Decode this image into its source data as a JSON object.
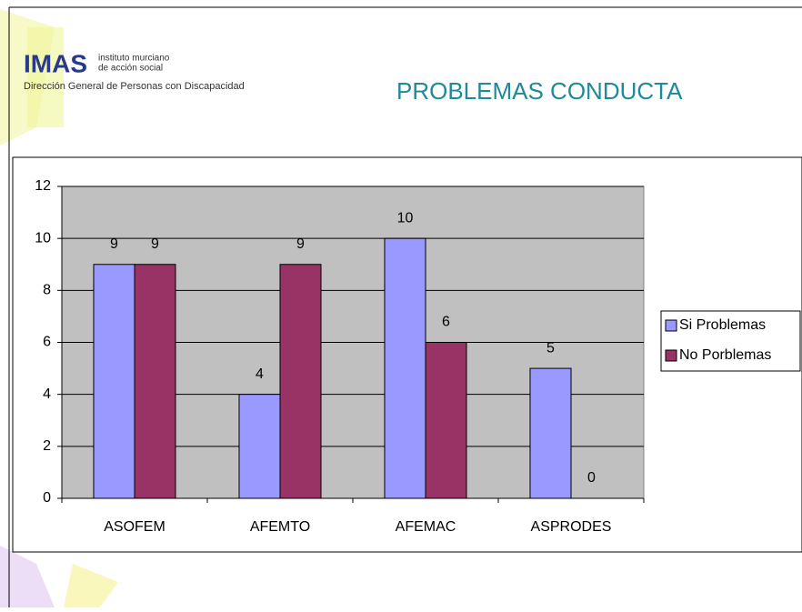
{
  "logo": {
    "brand": "IMAS",
    "line1": "instituto murciano",
    "line2": "de acción social",
    "subtitle": "Dirección General de Personas con Discapacidad"
  },
  "chart_data": {
    "type": "bar",
    "title": "PROBLEMAS CONDUCTA",
    "categories": [
      "ASOFEM",
      "AFEMTO",
      "AFEMAC",
      "ASPRODES"
    ],
    "series": [
      {
        "name": "Si Problemas",
        "color": "#9999ff",
        "values": [
          9,
          4,
          10,
          5
        ]
      },
      {
        "name": "No Porblemas",
        "color": "#993366",
        "values": [
          9,
          9,
          6,
          0
        ]
      }
    ],
    "ylim": [
      0,
      12
    ],
    "yticks": [
      0,
      2,
      4,
      6,
      8,
      10,
      12
    ],
    "grid": true,
    "legend": "right"
  }
}
